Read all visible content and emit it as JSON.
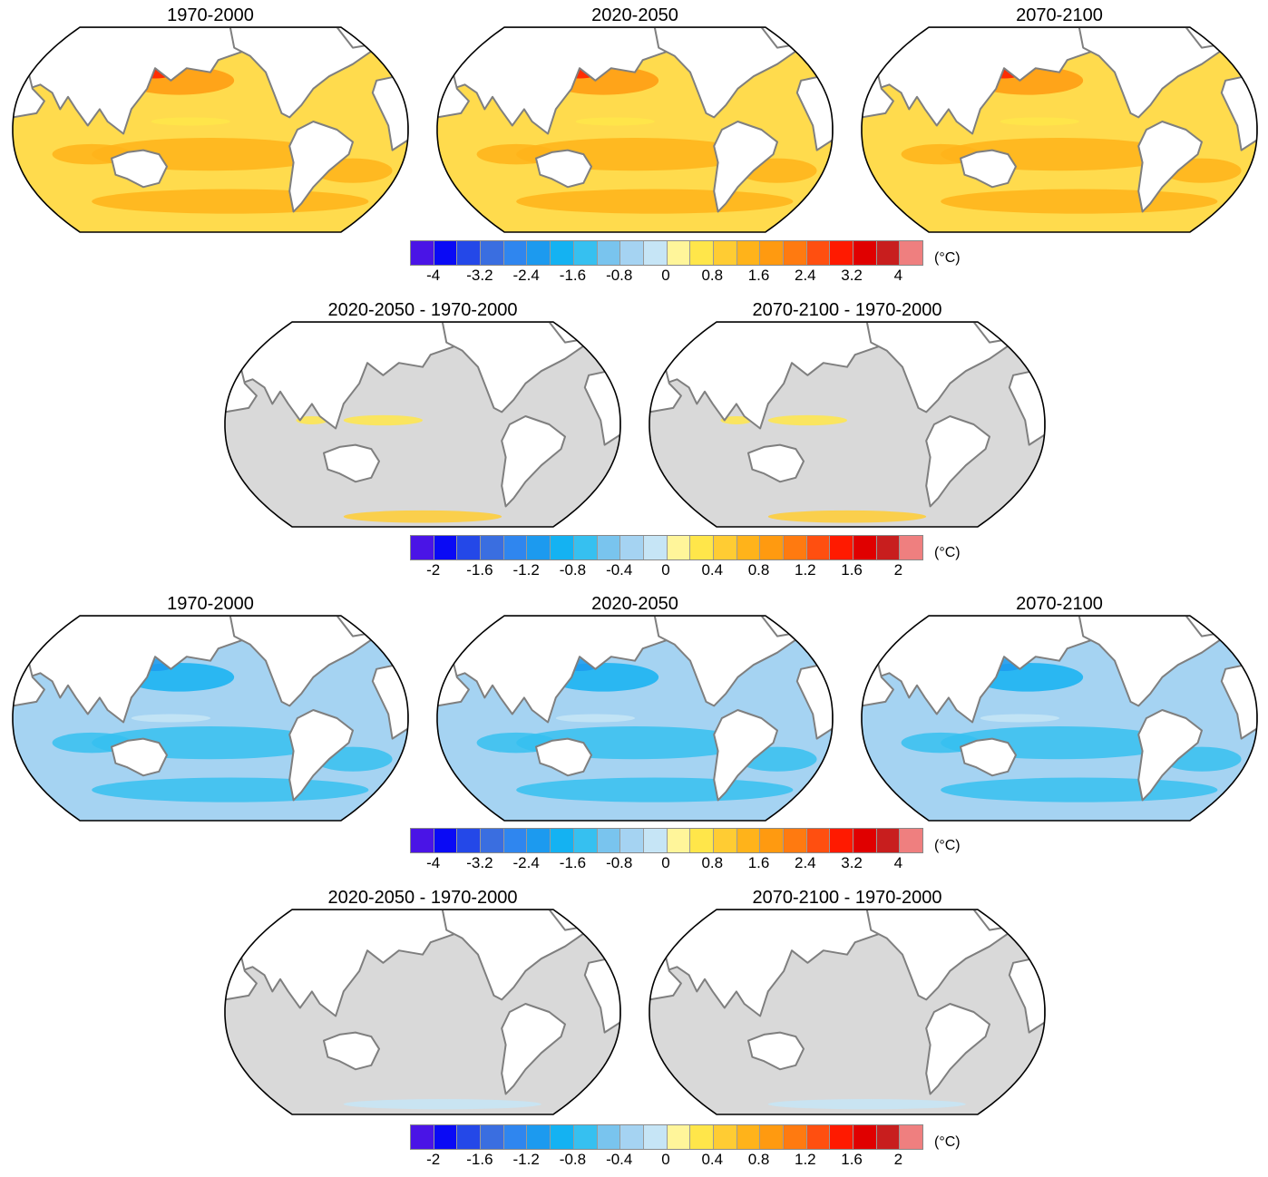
{
  "rows": [
    {
      "panels": [
        {
          "title": "1970-2000",
          "palette": "warm"
        },
        {
          "title": "2020-2050",
          "palette": "warm"
        },
        {
          "title": "2070-2100",
          "palette": "warm"
        }
      ],
      "colorbar": {
        "ticks": [
          "-4",
          "-3.2",
          "-2.4",
          "-1.6",
          "-0.8",
          "0",
          "0.8",
          "1.6",
          "2.4",
          "3.2",
          "4"
        ],
        "unit": "(°C)"
      }
    },
    {
      "panels": [
        {
          "title": "2020-2050 - 1970-2000",
          "palette": "diff-warm"
        },
        {
          "title": "2070-2100 - 1970-2000",
          "palette": "diff-warm"
        }
      ],
      "colorbar": {
        "ticks": [
          "-2",
          "-1.6",
          "-1.2",
          "-0.8",
          "-0.4",
          "0",
          "0.4",
          "0.8",
          "1.2",
          "1.6",
          "2"
        ],
        "unit": "(°C)"
      }
    },
    {
      "panels": [
        {
          "title": "1970-2000",
          "palette": "cool"
        },
        {
          "title": "2020-2050",
          "palette": "cool"
        },
        {
          "title": "2070-2100",
          "palette": "cool"
        }
      ],
      "colorbar": {
        "ticks": [
          "-4",
          "-3.2",
          "-2.4",
          "-1.6",
          "-0.8",
          "0",
          "0.8",
          "1.6",
          "2.4",
          "3.2",
          "4"
        ],
        "unit": "(°C)"
      }
    },
    {
      "panels": [
        {
          "title": "2020-2050 - 1970-2000",
          "palette": "diff-cool"
        },
        {
          "title": "2070-2100 - 1970-2000",
          "palette": "diff-cool"
        }
      ],
      "colorbar": {
        "ticks": [
          "-2",
          "-1.6",
          "-1.2",
          "-0.8",
          "-0.4",
          "0",
          "0.4",
          "0.8",
          "1.2",
          "1.6",
          "2"
        ],
        "unit": "(°C)"
      }
    }
  ],
  "colorbar_colors": [
    "#4a14e6",
    "#0a0af5",
    "#2448e8",
    "#3a6ee0",
    "#2f86ef",
    "#1c9aef",
    "#14b2f2",
    "#36c0f0",
    "#79c4ee",
    "#a5d3f2",
    "#c6e5f6",
    "#fff59a",
    "#ffe64a",
    "#ffcc33",
    "#ffb31a",
    "#ff9a10",
    "#ff7a10",
    "#ff4f10",
    "#ff1a00",
    "#e00000",
    "#c81e1e",
    "#ef7f7f"
  ],
  "fills": {
    "warm": "#ffdb4d",
    "diff-warm": "#d9d9d9",
    "cool": "#a5d3f2",
    "diff-cool": "#d9d9d9",
    "land": "#ffffff",
    "coast": "#7f7f7f"
  }
}
